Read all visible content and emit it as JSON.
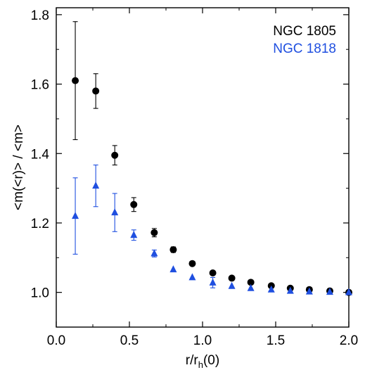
{
  "chart_data": {
    "type": "scatter",
    "xlim": [
      0.0,
      2.0
    ],
    "ylim": [
      0.9,
      1.82
    ],
    "x_ticks": [
      "0.0",
      "0.5",
      "1.0",
      "1.5",
      "2.0"
    ],
    "y_ticks": [
      "1.0",
      "1.2",
      "1.4",
      "1.6",
      "1.8"
    ],
    "xlabel": "r/r_h(0)",
    "ylabel": "<m(<r)> / <m>",
    "legend_position": "top-right",
    "grid": false,
    "series": [
      {
        "name": "NGC 1805",
        "marker": "circle",
        "color": "#000000",
        "points": [
          {
            "x": 0.13,
            "y": 1.61,
            "err": 0.17
          },
          {
            "x": 0.27,
            "y": 1.58,
            "err": 0.05
          },
          {
            "x": 0.4,
            "y": 1.395,
            "err": 0.028
          },
          {
            "x": 0.53,
            "y": 1.253,
            "err": 0.02
          },
          {
            "x": 0.67,
            "y": 1.172,
            "err": 0.012
          },
          {
            "x": 0.8,
            "y": 1.123,
            "err": 0.008
          },
          {
            "x": 0.93,
            "y": 1.083,
            "err": 0.0
          },
          {
            "x": 1.07,
            "y": 1.056,
            "err": 0.0
          },
          {
            "x": 1.2,
            "y": 1.041,
            "err": 0.0
          },
          {
            "x": 1.33,
            "y": 1.029,
            "err": 0.0
          },
          {
            "x": 1.47,
            "y": 1.019,
            "err": 0.0
          },
          {
            "x": 1.6,
            "y": 1.012,
            "err": 0.0
          },
          {
            "x": 1.73,
            "y": 1.008,
            "err": 0.0
          },
          {
            "x": 1.87,
            "y": 1.004,
            "err": 0.0
          },
          {
            "x": 2.0,
            "y": 1.0,
            "err": 0.0
          }
        ]
      },
      {
        "name": "NGC 1818",
        "marker": "triangle",
        "color": "#1f4fe0",
        "points": [
          {
            "x": 0.13,
            "y": 1.22,
            "err": 0.11
          },
          {
            "x": 0.27,
            "y": 1.307,
            "err": 0.06
          },
          {
            "x": 0.4,
            "y": 1.23,
            "err": 0.055
          },
          {
            "x": 0.53,
            "y": 1.165,
            "err": 0.015
          },
          {
            "x": 0.67,
            "y": 1.112,
            "err": 0.01
          },
          {
            "x": 0.8,
            "y": 1.066,
            "err": 0.0
          },
          {
            "x": 0.93,
            "y": 1.043,
            "err": 0.0
          },
          {
            "x": 1.07,
            "y": 1.028,
            "err": 0.015
          },
          {
            "x": 1.2,
            "y": 1.018,
            "err": 0.0
          },
          {
            "x": 1.33,
            "y": 1.012,
            "err": 0.0
          },
          {
            "x": 1.47,
            "y": 1.008,
            "err": 0.0
          },
          {
            "x": 1.6,
            "y": 1.004,
            "err": 0.0
          },
          {
            "x": 1.73,
            "y": 1.002,
            "err": 0.0
          },
          {
            "x": 1.87,
            "y": 1.001,
            "err": 0.0
          },
          {
            "x": 2.0,
            "y": 1.0,
            "err": 0.0
          }
        ]
      }
    ]
  }
}
